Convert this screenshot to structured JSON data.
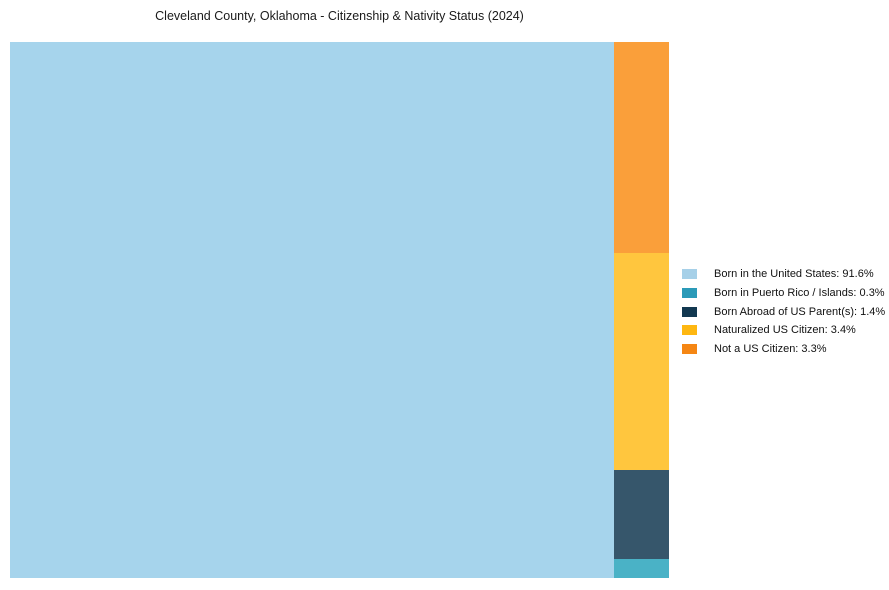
{
  "title": "Cleveland County, Oklahoma - Citizenship & Nativity Status (2024)",
  "chart_data": {
    "type": "treemap",
    "title": "Cleveland County, Oklahoma - Citizenship & Nativity Status (2024)",
    "unit": "%",
    "categories": [
      "Born in the United States",
      "Born in Puerto Rico / Islands",
      "Born Abroad of US Parent(s)",
      "Naturalized US Citizen",
      "Not a US Citizen"
    ],
    "values": [
      91.6,
      0.3,
      1.4,
      3.4,
      3.3
    ],
    "layout": {
      "grid": false,
      "legend_position": "center right",
      "main_rect": {
        "label": "Born in the United States",
        "value": 91.6,
        "fill": "#a6d4ec"
      },
      "right_column_top_to_bottom": [
        {
          "label": "Not a US Citizen",
          "value": 3.3,
          "fill": "#fa9f3a"
        },
        {
          "label": "Naturalized US Citizen",
          "value": 3.4,
          "fill": "#ffc63e"
        },
        {
          "label": "Born Abroad of US Parent(s)",
          "value": 1.4,
          "fill": "#36566b"
        },
        {
          "label": "Born in Puerto Rico / Islands",
          "value": 0.3,
          "fill": "#4ab2c6"
        }
      ]
    },
    "legend": [
      {
        "label": "Born in the United States: 91.6%",
        "color": "#a6d0e8"
      },
      {
        "label": "Born in Puerto Rico / Islands: 0.3%",
        "color": "#2b9ab8"
      },
      {
        "label": "Born Abroad of US Parent(s): 1.4%",
        "color": "#123850"
      },
      {
        "label": "Naturalized US Citizen: 3.4%",
        "color": "#feb711"
      },
      {
        "label": "Not a US Citizen: 3.3%",
        "color": "#f58613"
      }
    ]
  }
}
